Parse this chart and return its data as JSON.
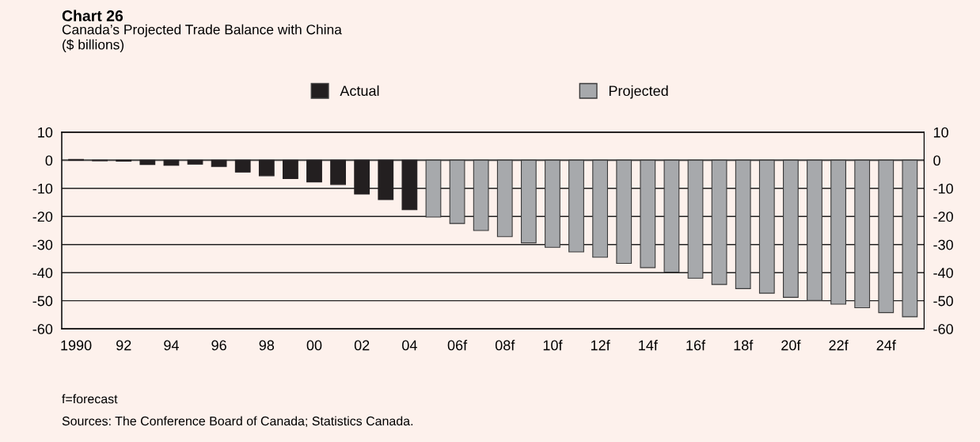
{
  "chart_data": {
    "type": "bar",
    "title": "Chart 26",
    "subtitle": "Canada’s Projected Trade Balance with China\n($ billions)",
    "categories": [
      "1990",
      null,
      "92",
      null,
      "94",
      null,
      "96",
      null,
      "98",
      null,
      "00",
      null,
      "02",
      null,
      "04",
      null,
      "06f",
      null,
      "08f",
      null,
      "10f",
      null,
      "12f",
      null,
      "14f",
      null,
      "16f",
      null,
      "18f",
      null,
      "20f",
      null,
      "22f",
      null,
      "24f",
      null
    ],
    "series": [
      {
        "name": "Actual",
        "color": "#231f20",
        "values": [
          0.3,
          -0.2,
          -0.3,
          -1.5,
          -1.8,
          -1.4,
          -2.2,
          -4.2,
          -5.5,
          -6.5,
          -7.7,
          -8.6,
          -12,
          -14,
          -17.6,
          null,
          null,
          null,
          null,
          null,
          null,
          null,
          null,
          null,
          null,
          null,
          null,
          null,
          null,
          null,
          null,
          null,
          null,
          null,
          null,
          null
        ]
      },
      {
        "name": "Projected",
        "color": "#a7a9ac",
        "values": [
          null,
          null,
          null,
          null,
          null,
          null,
          null,
          null,
          null,
          null,
          null,
          null,
          null,
          null,
          null,
          -20.2,
          -22.5,
          -25,
          -27.2,
          -29.4,
          -31,
          -32.6,
          -34.5,
          -36.7,
          -38.2,
          -39.8,
          -42,
          -44.2,
          -45.7,
          -47.3,
          -48.8,
          -49.9,
          -51.2,
          -52.5,
          -54.2,
          -55.7
        ]
      }
    ],
    "ylim": [
      -60,
      10
    ],
    "yticks": [
      -60,
      -50,
      -40,
      -30,
      -20,
      -10,
      0,
      10
    ],
    "y2lim": [
      -60,
      10
    ],
    "y2ticks": [
      -60,
      -50,
      -40,
      -30,
      -20,
      -10,
      0,
      10
    ],
    "grid": "y",
    "legend": "top",
    "annotations": [
      "f=forecast",
      "Sources: The Conference Board of Canada; Statistics Canada."
    ]
  }
}
